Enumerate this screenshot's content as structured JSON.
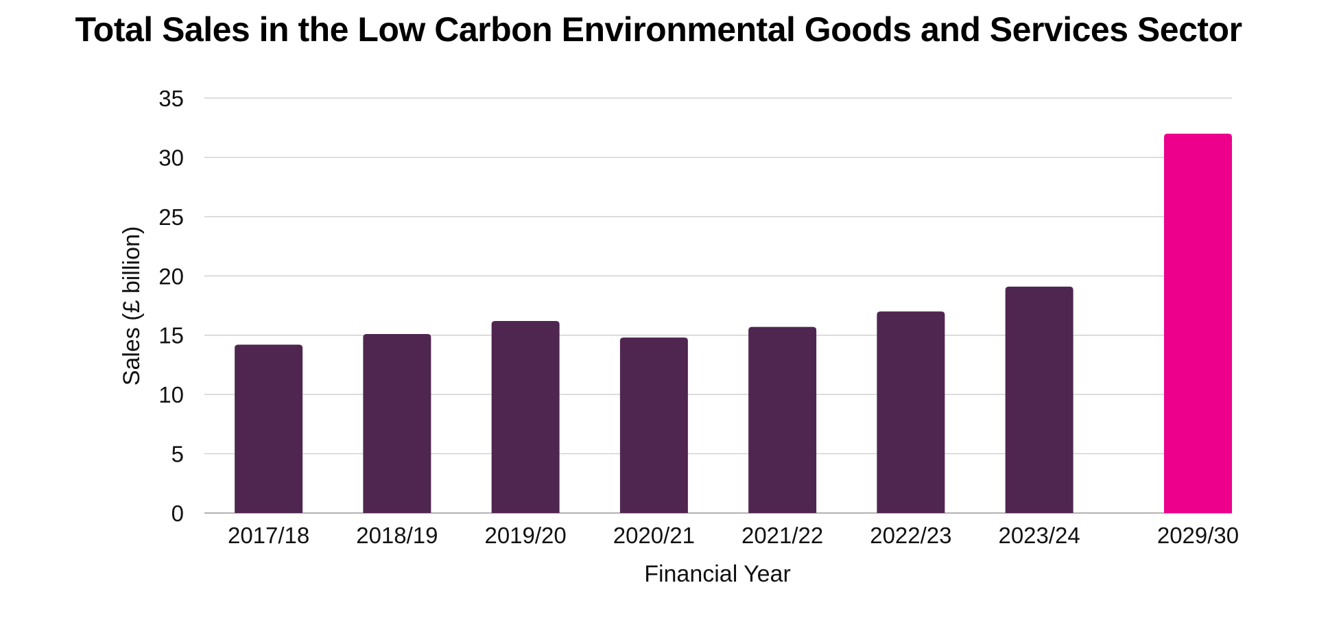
{
  "chart_data": {
    "type": "bar",
    "title": "Total Sales in the Low Carbon Environmental Goods and Services Sector",
    "xlabel": "Financial Year",
    "ylabel": "Sales (£ billion)",
    "categories": [
      "2017/18",
      "2018/19",
      "2019/20",
      "2020/21",
      "2021/22",
      "2022/23",
      "2023/24",
      "2029/30"
    ],
    "values": [
      14.2,
      15.1,
      16.2,
      14.8,
      15.7,
      17.0,
      19.1,
      32.0
    ],
    "bar_colors": [
      "#4f2650",
      "#4f2650",
      "#4f2650",
      "#4f2650",
      "#4f2650",
      "#4f2650",
      "#4f2650",
      "#ec008c"
    ],
    "ylim": [
      0,
      35
    ],
    "yticks": [
      0,
      5,
      10,
      15,
      20,
      25,
      30,
      35
    ],
    "grid": true,
    "colors": {
      "bar": "#4f2650",
      "highlight": "#ec008c",
      "grid": "#c8c8c8"
    }
  }
}
